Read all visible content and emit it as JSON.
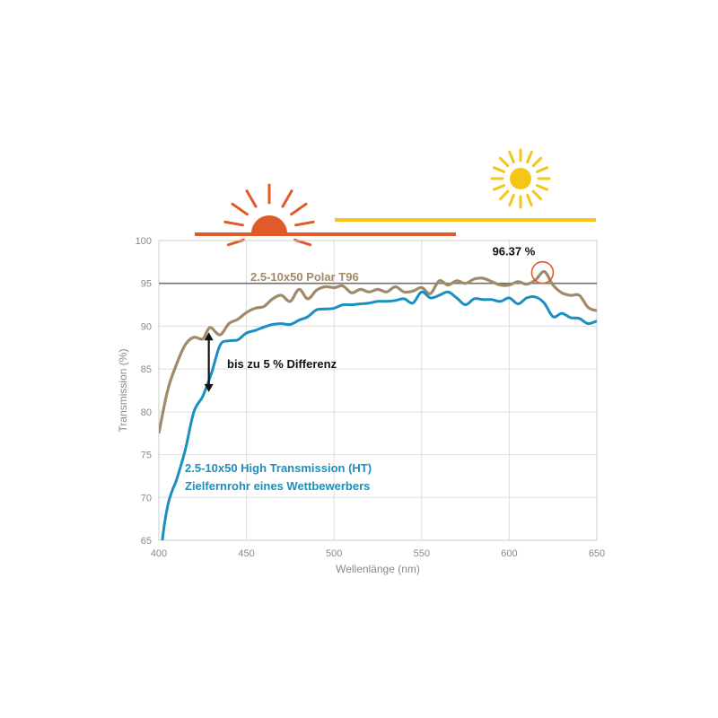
{
  "chart_data": {
    "type": "line",
    "xlabel": "Wellenlänge (nm)",
    "ylabel": "Transmission (%)",
    "xlim": [
      400,
      650
    ],
    "ylim": [
      65,
      100
    ],
    "x_ticks": [
      400,
      450,
      500,
      550,
      600,
      650
    ],
    "y_ticks": [
      65,
      70,
      75,
      80,
      85,
      90,
      95,
      100
    ],
    "grid": true,
    "colors": {
      "series_1": "#a08a6a",
      "series_2": "#1a8fc0",
      "reference": "#707070",
      "sun_low": "#e05a2a",
      "sun_high": "#f5c518",
      "peak_marker": "#e05a2a"
    },
    "reference_line": {
      "y": 95
    },
    "series": [
      {
        "name": "2.5-10x50 Polar T96",
        "color": "#a08a6a",
        "x": [
          400,
          405,
          410,
          415,
          420,
          425,
          428,
          430,
          435,
          440,
          445,
          450,
          455,
          460,
          465,
          470,
          475,
          480,
          485,
          490,
          495,
          500,
          505,
          510,
          515,
          520,
          525,
          530,
          535,
          540,
          545,
          550,
          555,
          560,
          565,
          570,
          575,
          580,
          585,
          590,
          595,
          600,
          605,
          610,
          615,
          620,
          625,
          630,
          635,
          640,
          645,
          650
        ],
        "y": [
          77.5,
          82.5,
          85.5,
          87.8,
          88.7,
          88.5,
          89.6,
          89.8,
          89.0,
          90.3,
          90.8,
          91.6,
          92.1,
          92.3,
          93.2,
          93.6,
          92.9,
          94.3,
          93.2,
          94.2,
          94.6,
          94.5,
          94.7,
          93.9,
          94.3,
          94.0,
          94.3,
          94.0,
          94.6,
          94.0,
          94.1,
          94.5,
          93.8,
          95.3,
          94.8,
          95.3,
          95.0,
          95.5,
          95.6,
          95.2,
          94.8,
          94.8,
          95.2,
          94.9,
          95.4,
          96.37,
          94.8,
          93.9,
          93.6,
          93.6,
          92.2,
          91.8
        ]
      },
      {
        "name": "2.5-10x50 High Transmission (HT) Zielfernrohr eines Wettbewerbers",
        "color": "#1a8fc0",
        "x": [
          400,
          402,
          405,
          408,
          410,
          415,
          420,
          425,
          430,
          435,
          440,
          445,
          450,
          455,
          460,
          465,
          470,
          475,
          480,
          485,
          490,
          495,
          500,
          505,
          510,
          515,
          520,
          525,
          530,
          535,
          540,
          545,
          550,
          555,
          560,
          565,
          570,
          575,
          580,
          585,
          590,
          595,
          600,
          605,
          610,
          615,
          620,
          625,
          630,
          635,
          640,
          645,
          650
        ],
        "y": [
          60.0,
          65.0,
          69.0,
          71.0,
          72.0,
          75.5,
          80.0,
          81.8,
          84.5,
          87.8,
          88.3,
          88.4,
          89.2,
          89.5,
          89.9,
          90.2,
          90.3,
          90.2,
          90.7,
          91.1,
          91.9,
          92.0,
          92.1,
          92.5,
          92.5,
          92.6,
          92.7,
          92.9,
          92.9,
          93.0,
          93.2,
          92.7,
          94.0,
          93.3,
          93.6,
          94.0,
          93.3,
          92.5,
          93.2,
          93.1,
          93.1,
          92.9,
          93.3,
          92.6,
          93.3,
          93.4,
          92.7,
          91.1,
          91.5,
          91.0,
          90.9,
          90.3,
          90.6
        ]
      }
    ],
    "annotations": {
      "peak_value_label": "96.37 %",
      "peak": {
        "x": 620,
        "y": 96.37
      },
      "difference_label": "bis zu 5 % Differenz",
      "difference_arrow": {
        "x": 428,
        "y_top": 89.6,
        "y_bottom": 82.2
      }
    },
    "series_labels": {
      "series_1": "2.5-10x50 Polar T96",
      "series_2_line1": "2.5-10x50 High Transmission (HT)",
      "series_2_line2": "Zielfernrohr eines Wettbewerbers"
    }
  },
  "icons": {
    "low_sun": "sunrise-icon",
    "high_sun": "sun-icon"
  }
}
